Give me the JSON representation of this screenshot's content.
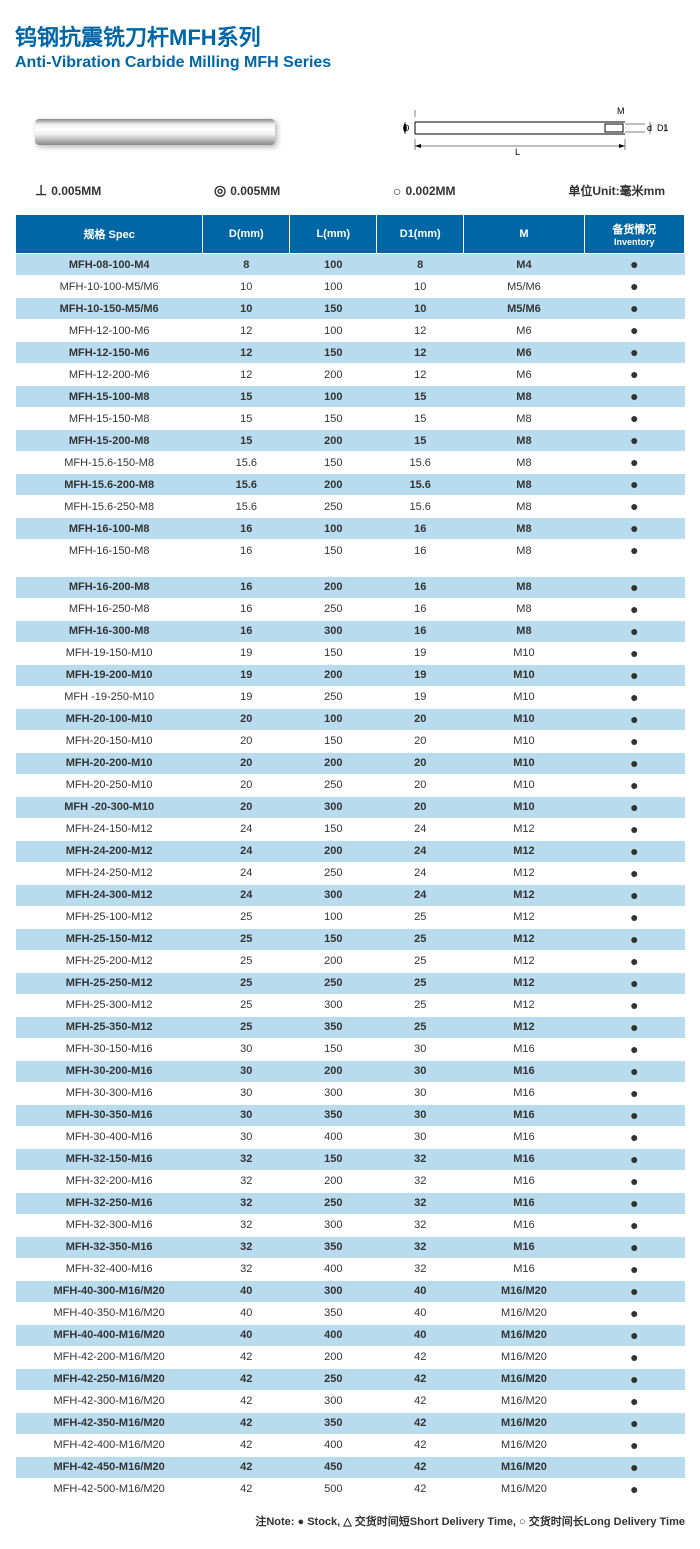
{
  "title_cn": "钨钢抗震铣刀杆MFH系列",
  "title_en": "Anti-Vibration Carbide Milling MFH Series",
  "tolerances": {
    "perp": "0.005MM",
    "conc": "0.005MM",
    "circ": "0.002MM",
    "unit_label": "单位Unit:毫米mm"
  },
  "diagram_labels": {
    "D": "D",
    "L": "L",
    "M": "M",
    "d": "d",
    "D1": "D1"
  },
  "headers": {
    "spec": "规格 Spec",
    "d": "D(mm)",
    "l": "L(mm)",
    "d1": "D1(mm)",
    "m": "M",
    "inv_cn": "备货情况",
    "inv_en": "Inventory"
  },
  "table1": [
    {
      "spec": "MFH-08-100-M4",
      "d": "8",
      "l": "100",
      "d1": "8",
      "m": "M4",
      "alt": true
    },
    {
      "spec": "MFH-10-100-M5/M6",
      "d": "10",
      "l": "100",
      "d1": "10",
      "m": "M5/M6",
      "alt": false
    },
    {
      "spec": "MFH-10-150-M5/M6",
      "d": "10",
      "l": "150",
      "d1": "10",
      "m": "M5/M6",
      "alt": true
    },
    {
      "spec": "MFH-12-100-M6",
      "d": "12",
      "l": "100",
      "d1": "12",
      "m": "M6",
      "alt": false
    },
    {
      "spec": "MFH-12-150-M6",
      "d": "12",
      "l": "150",
      "d1": "12",
      "m": "M6",
      "alt": true
    },
    {
      "spec": "MFH-12-200-M6",
      "d": "12",
      "l": "200",
      "d1": "12",
      "m": "M6",
      "alt": false
    },
    {
      "spec": "MFH-15-100-M8",
      "d": "15",
      "l": "100",
      "d1": "15",
      "m": "M8",
      "alt": true
    },
    {
      "spec": "MFH-15-150-M8",
      "d": "15",
      "l": "150",
      "d1": "15",
      "m": "M8",
      "alt": false
    },
    {
      "spec": "MFH-15-200-M8",
      "d": "15",
      "l": "200",
      "d1": "15",
      "m": "M8",
      "alt": true
    },
    {
      "spec": "MFH-15.6-150-M8",
      "d": "15.6",
      "l": "150",
      "d1": "15.6",
      "m": "M8",
      "alt": false
    },
    {
      "spec": "MFH-15.6-200-M8",
      "d": "15.6",
      "l": "200",
      "d1": "15.6",
      "m": "M8",
      "alt": true
    },
    {
      "spec": "MFH-15.6-250-M8",
      "d": "15.6",
      "l": "250",
      "d1": "15.6",
      "m": "M8",
      "alt": false
    },
    {
      "spec": "MFH-16-100-M8",
      "d": "16",
      "l": "100",
      "d1": "16",
      "m": "M8",
      "alt": true
    },
    {
      "spec": "MFH-16-150-M8",
      "d": "16",
      "l": "150",
      "d1": "16",
      "m": "M8",
      "alt": false
    }
  ],
  "table2": [
    {
      "spec": "MFH-16-200-M8",
      "d": "16",
      "l": "200",
      "d1": "16",
      "m": "M8",
      "alt": true
    },
    {
      "spec": "MFH-16-250-M8",
      "d": "16",
      "l": "250",
      "d1": "16",
      "m": "M8",
      "alt": false
    },
    {
      "spec": "MFH-16-300-M8",
      "d": "16",
      "l": "300",
      "d1": "16",
      "m": "M8",
      "alt": true
    },
    {
      "spec": "MFH-19-150-M10",
      "d": "19",
      "l": "150",
      "d1": "19",
      "m": "M10",
      "alt": false
    },
    {
      "spec": "MFH-19-200-M10",
      "d": "19",
      "l": "200",
      "d1": "19",
      "m": "M10",
      "alt": true
    },
    {
      "spec": "MFH -19-250-M10",
      "d": "19",
      "l": "250",
      "d1": "19",
      "m": "M10",
      "alt": false
    },
    {
      "spec": "MFH-20-100-M10",
      "d": "20",
      "l": "100",
      "d1": "20",
      "m": "M10",
      "alt": true
    },
    {
      "spec": "MFH-20-150-M10",
      "d": "20",
      "l": "150",
      "d1": "20",
      "m": "M10",
      "alt": false
    },
    {
      "spec": "MFH-20-200-M10",
      "d": "20",
      "l": "200",
      "d1": "20",
      "m": "M10",
      "alt": true
    },
    {
      "spec": "MFH-20-250-M10",
      "d": "20",
      "l": "250",
      "d1": "20",
      "m": "M10",
      "alt": false
    },
    {
      "spec": "MFH -20-300-M10",
      "d": "20",
      "l": "300",
      "d1": "20",
      "m": "M10",
      "alt": true
    },
    {
      "spec": "MFH-24-150-M12",
      "d": "24",
      "l": "150",
      "d1": "24",
      "m": "M12",
      "alt": false
    },
    {
      "spec": "MFH-24-200-M12",
      "d": "24",
      "l": "200",
      "d1": "24",
      "m": "M12",
      "alt": true
    },
    {
      "spec": "MFH-24-250-M12",
      "d": "24",
      "l": "250",
      "d1": "24",
      "m": "M12",
      "alt": false
    },
    {
      "spec": "MFH-24-300-M12",
      "d": "24",
      "l": "300",
      "d1": "24",
      "m": "M12",
      "alt": true
    },
    {
      "spec": "MFH-25-100-M12",
      "d": "25",
      "l": "100",
      "d1": "25",
      "m": "M12",
      "alt": false
    },
    {
      "spec": "MFH-25-150-M12",
      "d": "25",
      "l": "150",
      "d1": "25",
      "m": "M12",
      "alt": true
    },
    {
      "spec": "MFH-25-200-M12",
      "d": "25",
      "l": "200",
      "d1": "25",
      "m": "M12",
      "alt": false
    },
    {
      "spec": "MFH-25-250-M12",
      "d": "25",
      "l": "250",
      "d1": "25",
      "m": "M12",
      "alt": true
    },
    {
      "spec": "MFH-25-300-M12",
      "d": "25",
      "l": "300",
      "d1": "25",
      "m": "M12",
      "alt": false
    },
    {
      "spec": "MFH-25-350-M12",
      "d": "25",
      "l": "350",
      "d1": "25",
      "m": "M12",
      "alt": true
    },
    {
      "spec": "MFH-30-150-M16",
      "d": "30",
      "l": "150",
      "d1": "30",
      "m": "M16",
      "alt": false
    },
    {
      "spec": "MFH-30-200-M16",
      "d": "30",
      "l": "200",
      "d1": "30",
      "m": "M16",
      "alt": true
    },
    {
      "spec": "MFH-30-300-M16",
      "d": "30",
      "l": "300",
      "d1": "30",
      "m": "M16",
      "alt": false
    },
    {
      "spec": "MFH-30-350-M16",
      "d": "30",
      "l": "350",
      "d1": "30",
      "m": "M16",
      "alt": true
    },
    {
      "spec": "MFH-30-400-M16",
      "d": "30",
      "l": "400",
      "d1": "30",
      "m": "M16",
      "alt": false
    },
    {
      "spec": "MFH-32-150-M16",
      "d": "32",
      "l": "150",
      "d1": "32",
      "m": "M16",
      "alt": true
    },
    {
      "spec": "MFH-32-200-M16",
      "d": "32",
      "l": "200",
      "d1": "32",
      "m": "M16",
      "alt": false
    },
    {
      "spec": "MFH-32-250-M16",
      "d": "32",
      "l": "250",
      "d1": "32",
      "m": "M16",
      "alt": true
    },
    {
      "spec": "MFH-32-300-M16",
      "d": "32",
      "l": "300",
      "d1": "32",
      "m": "M16",
      "alt": false
    },
    {
      "spec": "MFH-32-350-M16",
      "d": "32",
      "l": "350",
      "d1": "32",
      "m": "M16",
      "alt": true
    },
    {
      "spec": "MFH-32-400-M16",
      "d": "32",
      "l": "400",
      "d1": "32",
      "m": "M16",
      "alt": false
    },
    {
      "spec": "MFH-40-300-M16/M20",
      "d": "40",
      "l": "300",
      "d1": "40",
      "m": "M16/M20",
      "alt": true
    },
    {
      "spec": "MFH-40-350-M16/M20",
      "d": "40",
      "l": "350",
      "d1": "40",
      "m": "M16/M20",
      "alt": false
    },
    {
      "spec": "MFH-40-400-M16/M20",
      "d": "40",
      "l": "400",
      "d1": "40",
      "m": "M16/M20",
      "alt": true
    },
    {
      "spec": "MFH-42-200-M16/M20",
      "d": "42",
      "l": "200",
      "d1": "42",
      "m": "M16/M20",
      "alt": false
    },
    {
      "spec": "MFH-42-250-M16/M20",
      "d": "42",
      "l": "250",
      "d1": "42",
      "m": "M16/M20",
      "alt": true
    },
    {
      "spec": "MFH-42-300-M16/M20",
      "d": "42",
      "l": "300",
      "d1": "42",
      "m": "M16/M20",
      "alt": false
    },
    {
      "spec": "MFH-42-350-M16/M20",
      "d": "42",
      "l": "350",
      "d1": "42",
      "m": "M16/M20",
      "alt": true
    },
    {
      "spec": "MFH-42-400-M16/M20",
      "d": "42",
      "l": "400",
      "d1": "42",
      "m": "M16/M20",
      "alt": false
    },
    {
      "spec": "MFH-42-450-M16/M20",
      "d": "42",
      "l": "450",
      "d1": "42",
      "m": "M16/M20",
      "alt": true
    },
    {
      "spec": "MFH-42-500-M16/M20",
      "d": "42",
      "l": "500",
      "d1": "42",
      "m": "M16/M20",
      "alt": false
    }
  ],
  "footer": "注Note:  ● Stock,  △ 交货时间短Short Delivery Time,  ○ 交货时间长Long Delivery Time",
  "colors": {
    "header_bg": "#0066a6",
    "row_blue": "#b8dcee",
    "row_white": "#ffffff"
  }
}
